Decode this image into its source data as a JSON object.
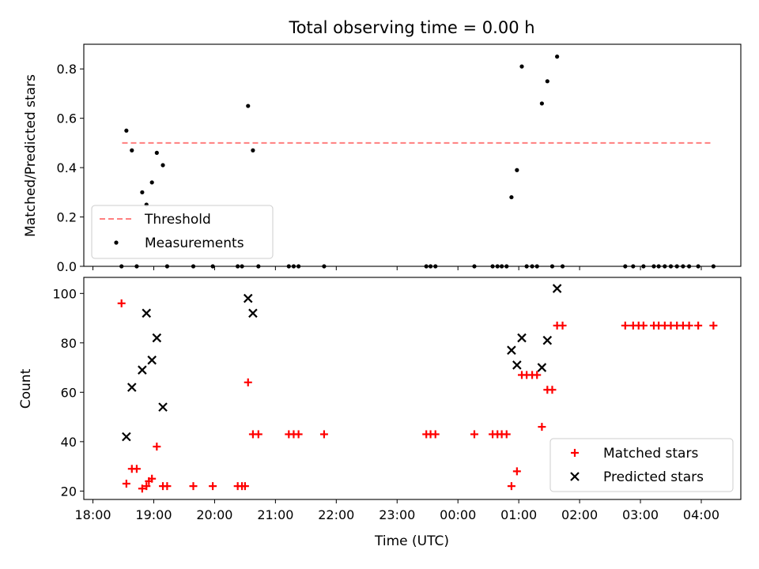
{
  "chart_data": [
    {
      "type": "scatter",
      "title": "Total observing time = 0.00 h",
      "ylabel": "Matched/Predicted stars",
      "xlabel": "",
      "xlim": [
        -0.15,
        10.65
      ],
      "ylim": [
        0,
        0.9
      ],
      "yticks": [
        0.0,
        0.2,
        0.4,
        0.6,
        0.8
      ],
      "grid": false,
      "legend": "lower-left",
      "threshold": {
        "name": "Threshold",
        "y": 0.5,
        "x_range": [
          0.48,
          10.2
        ],
        "color": "#ff7f7f",
        "style": "dashed"
      },
      "series": [
        {
          "name": "Measurements",
          "color": "#000000",
          "marker": "dot",
          "points": [
            [
              0.47,
              0.0
            ],
            [
              0.55,
              0.55
            ],
            [
              0.64,
              0.47
            ],
            [
              0.72,
              0.0
            ],
            [
              0.81,
              0.3
            ],
            [
              0.88,
              0.25
            ],
            [
              0.97,
              0.34
            ],
            [
              1.05,
              0.46
            ],
            [
              1.15,
              0.41
            ],
            [
              1.22,
              0.0
            ],
            [
              1.65,
              0.0
            ],
            [
              1.97,
              0.0
            ],
            [
              2.38,
              0.0
            ],
            [
              2.45,
              0.0
            ],
            [
              2.55,
              0.65
            ],
            [
              2.63,
              0.47
            ],
            [
              2.72,
              0.0
            ],
            [
              3.22,
              0.0
            ],
            [
              3.3,
              0.0
            ],
            [
              3.38,
              0.0
            ],
            [
              3.8,
              0.0
            ],
            [
              5.48,
              0.0
            ],
            [
              5.55,
              0.0
            ],
            [
              5.63,
              0.0
            ],
            [
              6.27,
              0.0
            ],
            [
              6.57,
              0.0
            ],
            [
              6.65,
              0.0
            ],
            [
              6.72,
              0.0
            ],
            [
              6.8,
              0.0
            ],
            [
              6.88,
              0.28
            ],
            [
              6.97,
              0.39
            ],
            [
              7.05,
              0.81
            ],
            [
              7.13,
              0.0
            ],
            [
              7.22,
              0.0
            ],
            [
              7.3,
              0.0
            ],
            [
              7.38,
              0.66
            ],
            [
              7.47,
              0.75
            ],
            [
              7.55,
              0.0
            ],
            [
              7.63,
              0.85
            ],
            [
              7.72,
              0.0
            ],
            [
              8.75,
              0.0
            ],
            [
              8.88,
              0.0
            ],
            [
              9.05,
              0.0
            ],
            [
              9.22,
              0.0
            ],
            [
              9.3,
              0.0
            ],
            [
              9.4,
              0.0
            ],
            [
              9.5,
              0.0
            ],
            [
              9.6,
              0.0
            ],
            [
              9.7,
              0.0
            ],
            [
              9.8,
              0.0
            ],
            [
              9.95,
              0.0
            ],
            [
              10.2,
              0.0
            ]
          ]
        }
      ]
    },
    {
      "type": "scatter",
      "title": "",
      "ylabel": "Count",
      "xlabel": "Time (UTC)",
      "xlim": [
        -0.15,
        10.65
      ],
      "ylim": [
        16.6,
        106.5
      ],
      "yticks": [
        20,
        40,
        60,
        80,
        100
      ],
      "xticks": [
        0,
        1,
        2,
        3,
        4,
        5,
        6,
        7,
        8,
        9,
        10
      ],
      "xtick_labels": [
        "18:00",
        "19:00",
        "20:00",
        "21:00",
        "22:00",
        "23:00",
        "00:00",
        "01:00",
        "02:00",
        "03:00",
        "04:00"
      ],
      "grid": false,
      "legend": "lower-right",
      "series": [
        {
          "name": "Matched stars",
          "color": "#ff0000",
          "marker": "plus",
          "points": [
            [
              0.47,
              96
            ],
            [
              0.55,
              23
            ],
            [
              0.64,
              29
            ],
            [
              0.72,
              29
            ],
            [
              0.81,
              21
            ],
            [
              0.88,
              22
            ],
            [
              0.92,
              24
            ],
            [
              0.97,
              25
            ],
            [
              1.05,
              38
            ],
            [
              1.15,
              22
            ],
            [
              1.22,
              22
            ],
            [
              1.65,
              22
            ],
            [
              1.97,
              22
            ],
            [
              2.38,
              22
            ],
            [
              2.45,
              22
            ],
            [
              2.5,
              22
            ],
            [
              2.55,
              64
            ],
            [
              2.63,
              43
            ],
            [
              2.72,
              43
            ],
            [
              3.22,
              43
            ],
            [
              3.3,
              43
            ],
            [
              3.38,
              43
            ],
            [
              3.8,
              43
            ],
            [
              5.48,
              43
            ],
            [
              5.55,
              43
            ],
            [
              5.63,
              43
            ],
            [
              6.27,
              43
            ],
            [
              6.57,
              43
            ],
            [
              6.65,
              43
            ],
            [
              6.72,
              43
            ],
            [
              6.8,
              43
            ],
            [
              6.88,
              22
            ],
            [
              6.97,
              28
            ],
            [
              7.05,
              67
            ],
            [
              7.13,
              67
            ],
            [
              7.22,
              67
            ],
            [
              7.3,
              67
            ],
            [
              7.38,
              46
            ],
            [
              7.47,
              61
            ],
            [
              7.55,
              61
            ],
            [
              7.63,
              87
            ],
            [
              7.72,
              87
            ],
            [
              8.75,
              87
            ],
            [
              8.88,
              87
            ],
            [
              8.97,
              87
            ],
            [
              9.05,
              87
            ],
            [
              9.22,
              87
            ],
            [
              9.3,
              87
            ],
            [
              9.4,
              87
            ],
            [
              9.5,
              87
            ],
            [
              9.6,
              87
            ],
            [
              9.7,
              87
            ],
            [
              9.8,
              87
            ],
            [
              9.95,
              87
            ],
            [
              10.2,
              87
            ]
          ]
        },
        {
          "name": "Predicted stars",
          "color": "#000000",
          "marker": "x",
          "points": [
            [
              0.55,
              42
            ],
            [
              0.64,
              62
            ],
            [
              0.81,
              69
            ],
            [
              0.88,
              92
            ],
            [
              0.97,
              73
            ],
            [
              1.05,
              82
            ],
            [
              1.15,
              54
            ],
            [
              2.55,
              98
            ],
            [
              2.63,
              92
            ],
            [
              6.88,
              77
            ],
            [
              6.97,
              71
            ],
            [
              7.05,
              82
            ],
            [
              7.38,
              70
            ],
            [
              7.47,
              81
            ],
            [
              7.63,
              102
            ]
          ]
        }
      ]
    }
  ]
}
